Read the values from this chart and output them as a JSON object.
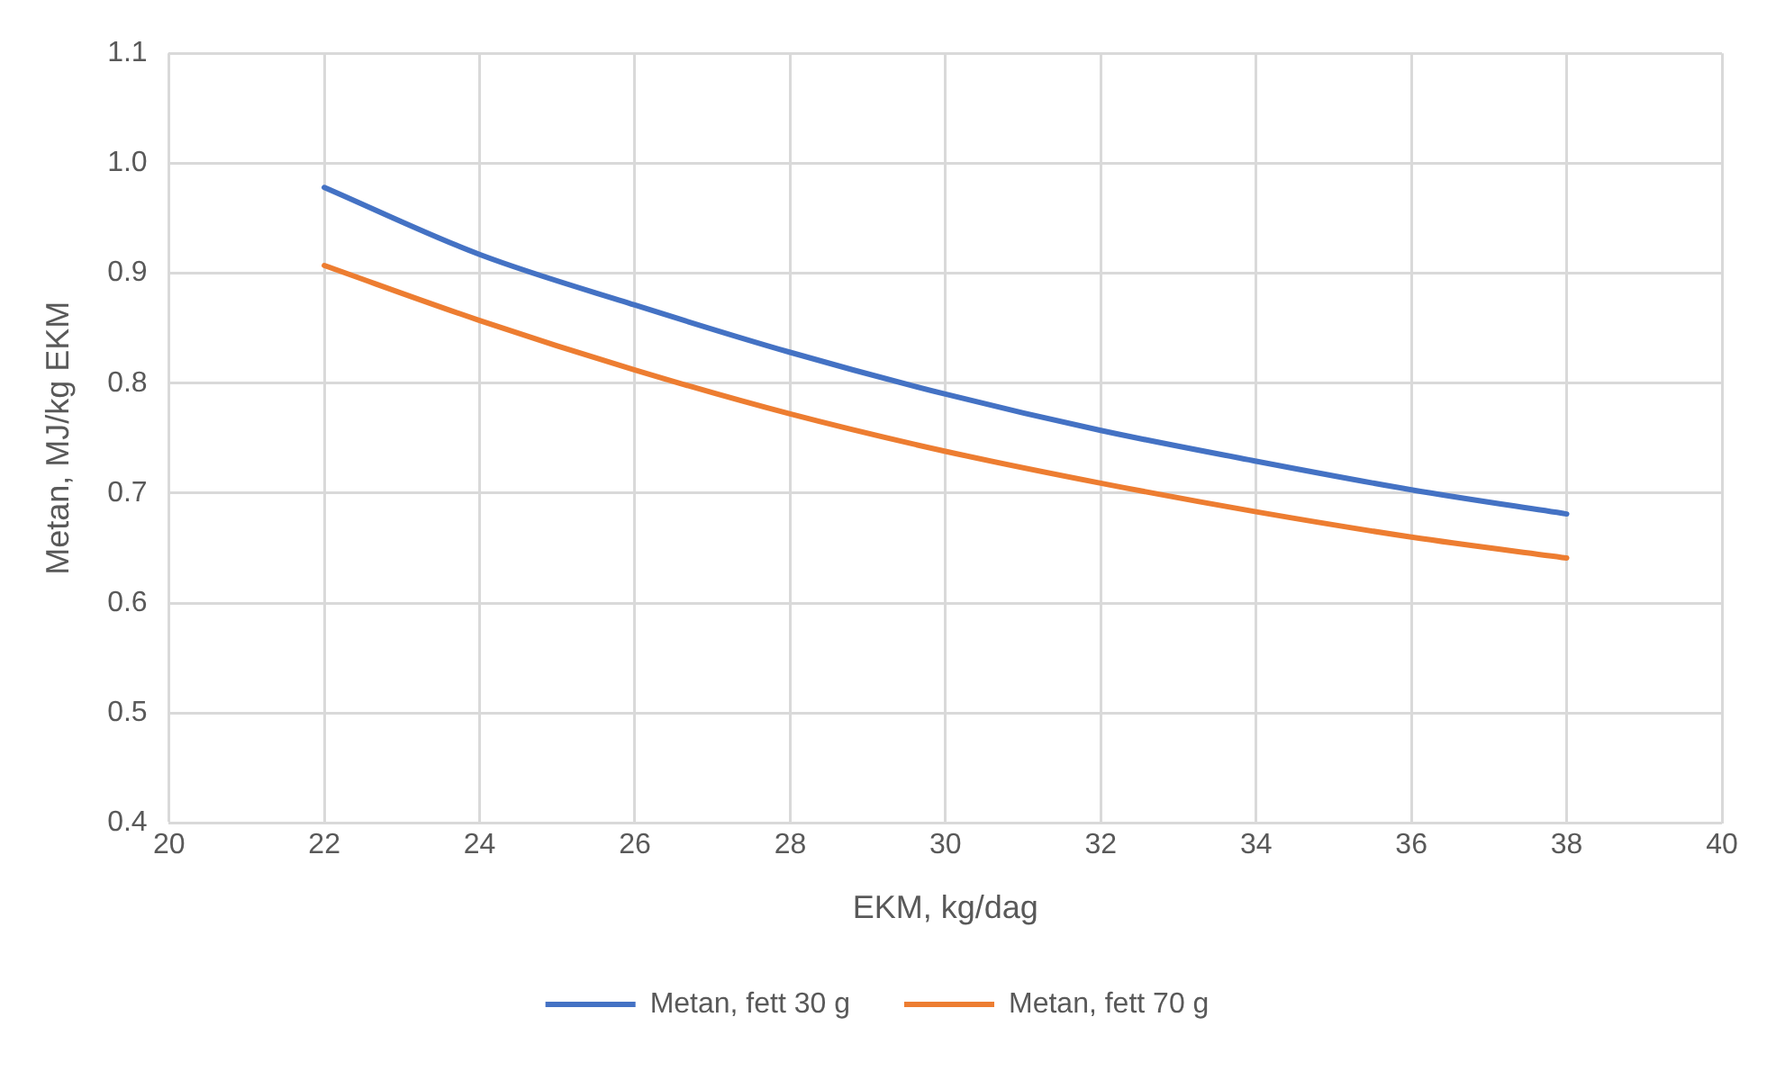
{
  "chart_data": {
    "type": "line",
    "xlabel": "EKM, kg/dag",
    "ylabel": "Metan, MJ/kg EKM",
    "x": [
      22,
      24,
      26,
      28,
      30,
      32,
      34,
      36,
      38
    ],
    "series": [
      {
        "name": "Metan, fett 30 g",
        "color": "#4472c4",
        "values": [
          0.978,
          0.917,
          0.871,
          0.828,
          0.79,
          0.757,
          0.729,
          0.703,
          0.681
        ]
      },
      {
        "name": "Metan, fett 70 g",
        "color": "#ed7d31",
        "values": [
          0.907,
          0.857,
          0.812,
          0.772,
          0.738,
          0.709,
          0.683,
          0.66,
          0.641
        ]
      }
    ],
    "xlim": [
      20,
      40
    ],
    "xticks": [
      20,
      22,
      24,
      26,
      28,
      30,
      32,
      34,
      36,
      38,
      40
    ],
    "ylim": [
      0.4,
      1.1
    ],
    "yticks": [
      {
        "value": 0.4,
        "label": "0.4"
      },
      {
        "value": 0.5,
        "label": "0.5"
      },
      {
        "value": 0.6,
        "label": "0.6"
      },
      {
        "value": 0.7,
        "label": "0.7"
      },
      {
        "value": 0.8,
        "label": "0.8"
      },
      {
        "value": 0.9,
        "label": "0.9"
      },
      {
        "value": 1.0,
        "label": "1.0"
      },
      {
        "value": 1.1,
        "label": "1.1"
      }
    ],
    "grid": true,
    "legend": "bottom",
    "marker": "none",
    "line_style": "solid"
  }
}
